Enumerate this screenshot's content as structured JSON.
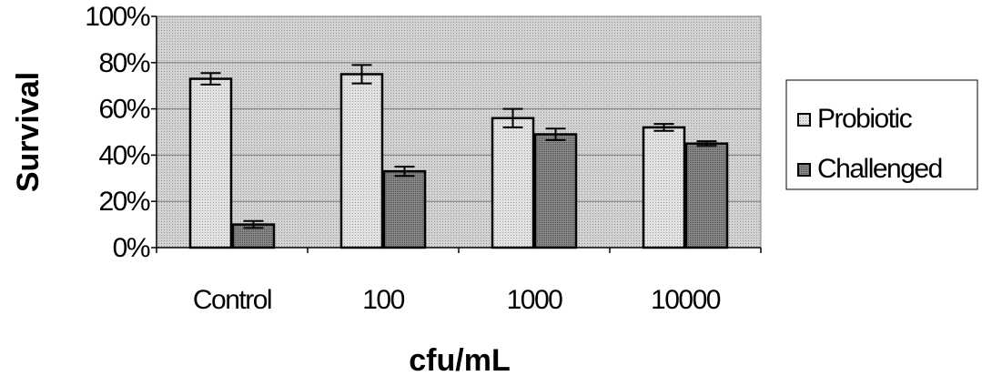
{
  "chart_data": {
    "type": "bar",
    "title": "",
    "xlabel": "cfu/mL",
    "ylabel": "Survival",
    "categories": [
      "Control",
      "100",
      "1000",
      "10000"
    ],
    "series": [
      {
        "name": "Probiotic",
        "values": [
          0.73,
          0.75,
          0.56,
          0.52
        ],
        "errors": [
          0.025,
          0.04,
          0.04,
          0.015
        ],
        "color": "#d9d9d9"
      },
      {
        "name": "Challenged",
        "values": [
          0.1,
          0.33,
          0.49,
          0.45
        ],
        "errors": [
          0.015,
          0.02,
          0.025,
          0.01
        ],
        "color": "#7a7a7a"
      }
    ],
    "ylim": [
      0,
      1
    ],
    "yticks": [
      "0%",
      "20%",
      "40%",
      "60%",
      "80%",
      "100%"
    ],
    "ytick_values": [
      0,
      0.2,
      0.4,
      0.6,
      0.8,
      1.0
    ],
    "grid": true,
    "legend": "right",
    "plot_background": "#c8c8c8"
  }
}
